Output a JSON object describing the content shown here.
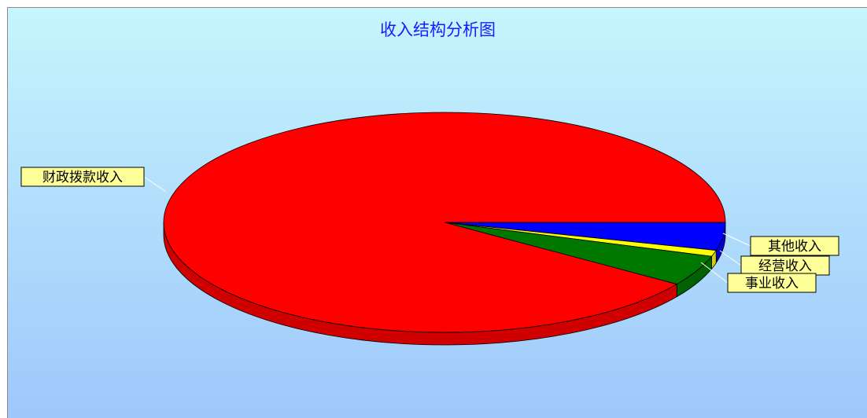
{
  "chart_data": {
    "type": "pie",
    "title": "收入结构分析图",
    "categories": [
      "财政拨款收入",
      "事业收入",
      "经营收入",
      "其他收入"
    ],
    "values": [
      90.5,
      4.5,
      0.9,
      4.1
    ],
    "colors": [
      "#ff0000",
      "#007800",
      "#ffff00",
      "#0000ff"
    ],
    "label_background": "#ffff99",
    "style": "3d-tilted"
  }
}
